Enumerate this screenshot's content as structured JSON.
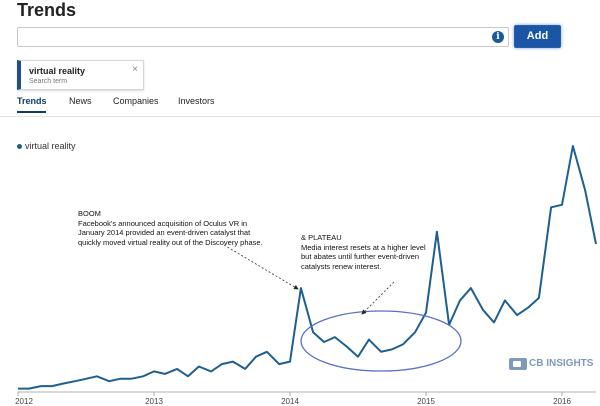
{
  "page": {
    "title": "Trends"
  },
  "search": {
    "value": "",
    "placeholder": "",
    "add_label": "Add",
    "info_icon": "info-icon"
  },
  "term_card": {
    "name": "virtual reality",
    "subtitle": "Search term",
    "close_glyph": "×"
  },
  "tabs": [
    {
      "label": "Trends",
      "active": true
    },
    {
      "label": "News",
      "active": false
    },
    {
      "label": "Companies",
      "active": false
    },
    {
      "label": "Investors",
      "active": false
    }
  ],
  "colors": {
    "accent": "#1f5f8f",
    "button": "#1b56a6",
    "ellipse": "#5b6fc9",
    "watermark": "#7f99b8"
  },
  "annotations": {
    "boom": {
      "lines": [
        "BOOM",
        "Facebook's announced acquisition of Oculus VR in",
        "January 2014 provided an event-driven catalyst that",
        "quickly moved virtual reality out of the Discovery phase."
      ]
    },
    "plateau": {
      "lines": [
        "& PLATEAU",
        "Media interest resets at a higher level",
        "but abates until further event-driven",
        "catalysts renew interest."
      ]
    }
  },
  "watermark": {
    "text": "CB INSIGHTS"
  },
  "chart_data": {
    "type": "line",
    "title": "",
    "xlabel": "",
    "ylabel": "",
    "legend": "top-left",
    "grid": false,
    "x_ticks": [
      "2012",
      "2013",
      "2014",
      "2015",
      "2016"
    ],
    "xlim": [
      2012.0,
      2016.25
    ],
    "ylim": [
      0,
      100
    ],
    "series": [
      {
        "name": "virtual reality",
        "x": [
          2012.0,
          2012.08,
          2012.17,
          2012.25,
          2012.33,
          2012.42,
          2012.5,
          2012.58,
          2012.67,
          2012.75,
          2012.83,
          2012.92,
          2013.0,
          2013.08,
          2013.17,
          2013.25,
          2013.33,
          2013.42,
          2013.5,
          2013.58,
          2013.67,
          2013.75,
          2013.83,
          2013.92,
          2014.0,
          2014.08,
          2014.17,
          2014.25,
          2014.33,
          2014.42,
          2014.5,
          2014.58,
          2014.67,
          2014.75,
          2014.83,
          2014.92,
          2015.0,
          2015.08,
          2015.17,
          2015.25,
          2015.33,
          2015.42,
          2015.5,
          2015.58,
          2015.67,
          2015.75,
          2015.83,
          2015.92,
          2016.0,
          2016.08,
          2016.17,
          2016.25
        ],
        "values": [
          1,
          1,
          2,
          2,
          3,
          4,
          5,
          6,
          4,
          5,
          5,
          6,
          8,
          7,
          9,
          6,
          10,
          8,
          11,
          12,
          9,
          14,
          16,
          11,
          12,
          42,
          24,
          20,
          22,
          18,
          14,
          21,
          16,
          17,
          19,
          24,
          32,
          65,
          27,
          37,
          42,
          33,
          28,
          37,
          31,
          34,
          38,
          75,
          76,
          100,
          82,
          60
        ]
      }
    ]
  }
}
